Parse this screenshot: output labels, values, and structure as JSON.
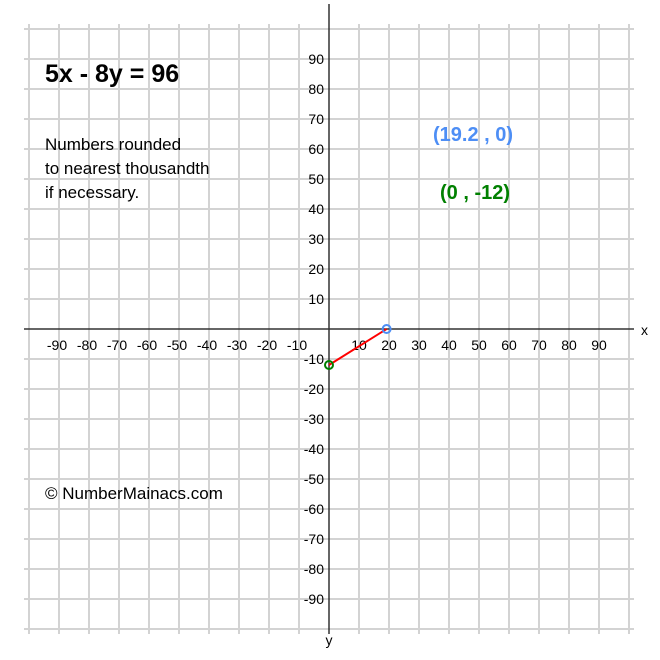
{
  "chart_data": {
    "type": "line",
    "title": "5x - 8y = 96",
    "note_lines": [
      "Numbers rounded",
      "to nearest thousandth",
      "if necessary."
    ],
    "copyright": "© NumberMainacs.com",
    "xlabel": "x",
    "ylabel": "y",
    "xlim": [
      -100,
      100
    ],
    "ylim": [
      -100,
      100
    ],
    "grid": true,
    "tick_step": 10,
    "xticks": [
      -90,
      -80,
      -70,
      -60,
      -50,
      -40,
      -30,
      -20,
      -10,
      10,
      20,
      30,
      40,
      50,
      60,
      70,
      80,
      90
    ],
    "yticks": [
      90,
      80,
      70,
      60,
      50,
      40,
      30,
      20,
      10,
      -10,
      -20,
      -30,
      -40,
      -50,
      -60,
      -70,
      -80,
      -90
    ],
    "segment": {
      "from": [
        0,
        -12
      ],
      "to": [
        19.2,
        0
      ],
      "color": "#ff0000"
    },
    "points": [
      {
        "x": 19.2,
        "y": 0,
        "label": "(19.2 , 0)",
        "color": "#4d8ef5"
      },
      {
        "x": 0,
        "y": -12,
        "label": "(0 , -12)",
        "color": "#008000"
      }
    ]
  }
}
